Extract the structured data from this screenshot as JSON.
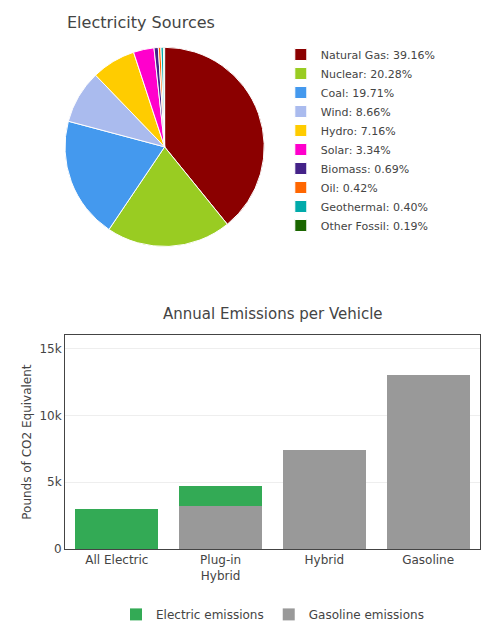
{
  "chart_data": [
    {
      "type": "pie",
      "title": "Electricity Sources",
      "categories": [
        "Natural Gas: 39.16%",
        "Nuclear: 20.28%",
        "Coal: 19.71%",
        "Wind: 8.66%",
        "Hydro: 7.16%",
        "Solar: 3.34%",
        "Biomass: 0.69%",
        "Oil: 0.42%",
        "Geothermal: 0.40%",
        "Other Fossil: 0.19%"
      ],
      "values": [
        39.16,
        20.28,
        19.71,
        8.66,
        7.16,
        3.34,
        0.69,
        0.42,
        0.4,
        0.19
      ],
      "colors": [
        "#8b0000",
        "#99cc22",
        "#4499ee",
        "#aabbee",
        "#ffcc00",
        "#ff00cc",
        "#442288",
        "#ff6600",
        "#00aaaa",
        "#1a6600"
      ],
      "legend": "right"
    },
    {
      "type": "bar",
      "title": "Annual Emissions per Vehicle",
      "categories": [
        "All Electric",
        "Plug-in\nHybrid",
        "Hybrid",
        "Gasoline"
      ],
      "series": [
        {
          "name": "Gasoline emissions",
          "color": "#999999",
          "values": [
            0,
            3200,
            7400,
            13000
          ]
        },
        {
          "name": "Electric emissions",
          "color": "#33aa55",
          "values": [
            3000,
            1500,
            0,
            0
          ]
        }
      ],
      "stacked": true,
      "ylabel": "Pounds of CO2 Equivalent",
      "ylim": [
        0,
        16000
      ],
      "yticks": [
        0,
        {
          "value": 5000,
          "label": "5k"
        },
        {
          "value": 10000,
          "label": "10k"
        },
        {
          "value": 15000,
          "label": "15k"
        }
      ],
      "grid": true,
      "legend": "bottom"
    }
  ]
}
